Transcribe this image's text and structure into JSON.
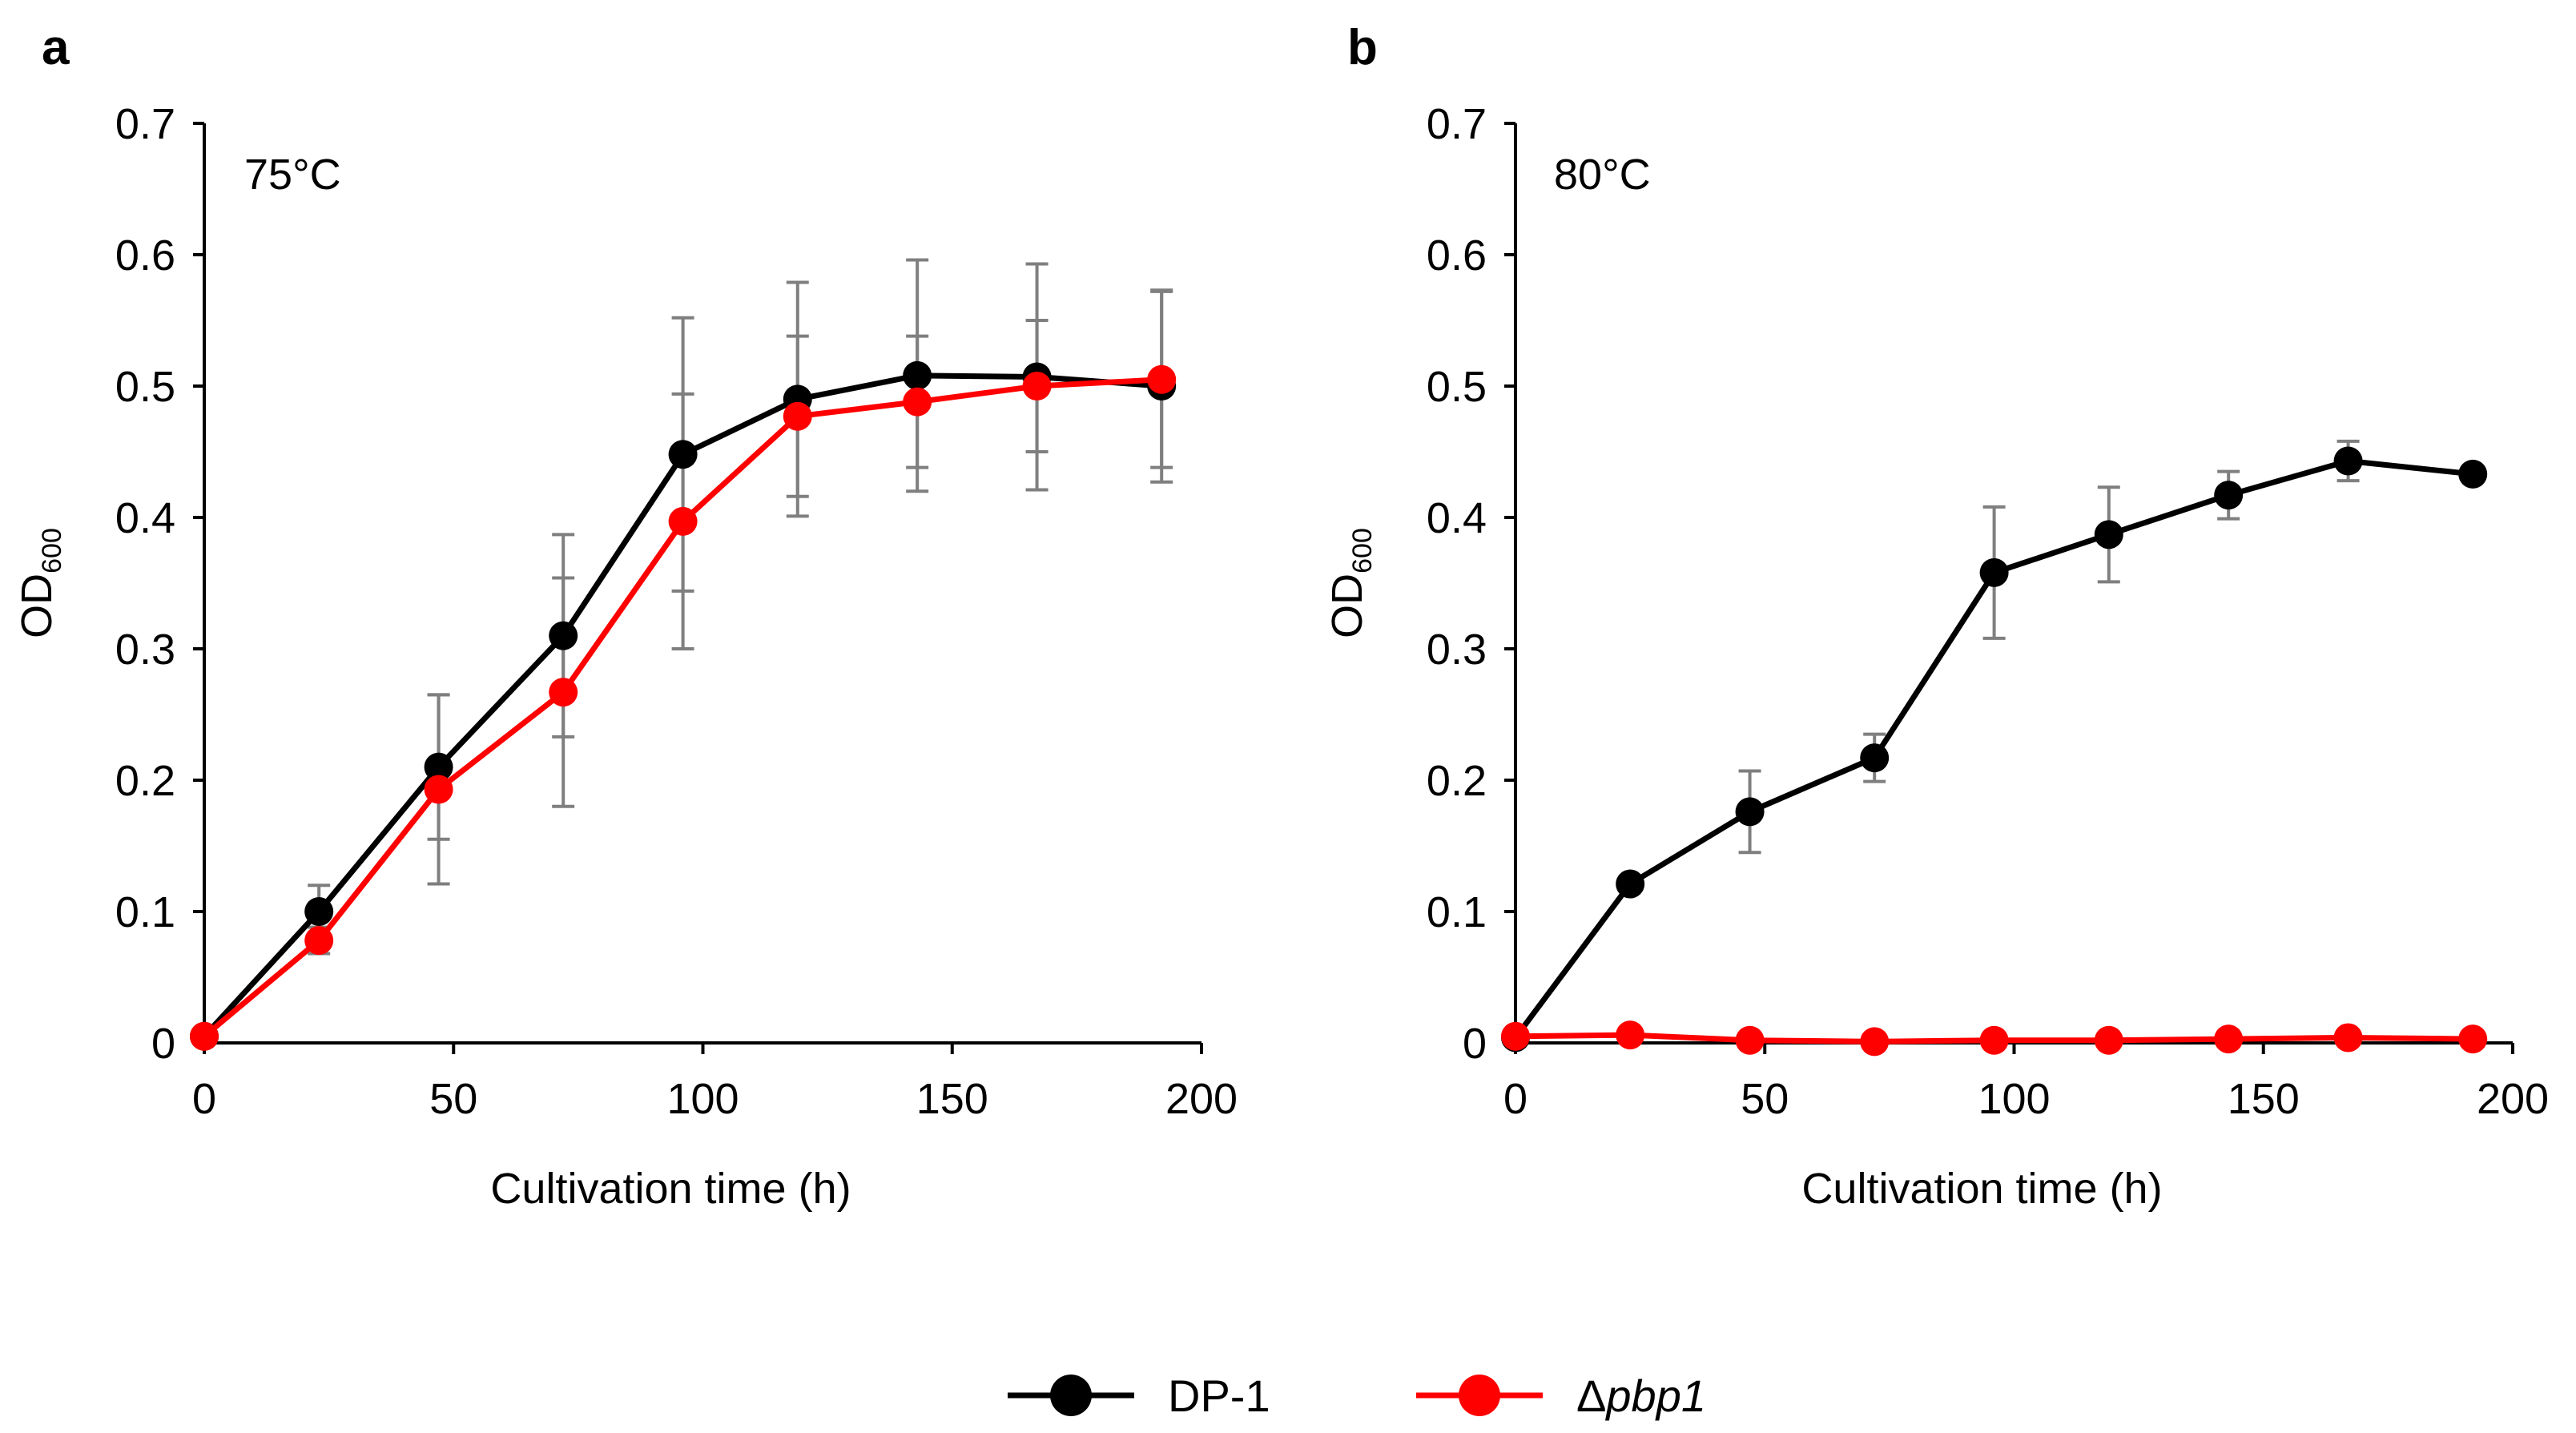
{
  "colors": {
    "dp1": "#000000",
    "pbp1": "#ff0000",
    "error_bar": "#7f7f7f",
    "axis": "#000000"
  },
  "legend": [
    {
      "label": "DP-1",
      "color": "#000000",
      "italic": false
    },
    {
      "label_prefix": "Δ",
      "label": "pbp1",
      "color": "#ff0000",
      "italic": true
    }
  ],
  "chart_data": [
    {
      "panel": "a",
      "type": "line",
      "annotation": "75°C",
      "xlabel": "Cultivation time (h)",
      "ylabel_main": "OD",
      "ylabel_sub": "600",
      "xlim": [
        0,
        200
      ],
      "ylim": [
        0,
        0.7
      ],
      "xticks": [
        "0",
        "50",
        "100",
        "150",
        "200"
      ],
      "yticks": [
        "0",
        "0.1",
        "0.2",
        "0.3",
        "0.4",
        "0.5",
        "0.6",
        "0.7"
      ],
      "x": [
        0,
        23,
        47,
        72,
        96,
        119,
        143,
        167,
        192
      ],
      "series": [
        {
          "name": "DP-1",
          "color": "#000000",
          "values": [
            0.005,
            0.1,
            0.21,
            0.31,
            0.448,
            0.49,
            0.508,
            0.507,
            0.5
          ],
          "errors": [
            0.003,
            0.02,
            0.055,
            0.077,
            0.104,
            0.089,
            0.088,
            0.086,
            0.073
          ]
        },
        {
          "name": "pbp1",
          "color": "#ff0000",
          "values": [
            0.005,
            0.078,
            0.193,
            0.267,
            0.397,
            0.477,
            0.488,
            0.5,
            0.505
          ],
          "errors": [
            0.003,
            0.01,
            0.072,
            0.087,
            0.097,
            0.061,
            0.05,
            0.05,
            0.067
          ]
        }
      ]
    },
    {
      "panel": "b",
      "type": "line",
      "annotation": "80°C",
      "xlabel": "Cultivation time (h)",
      "ylabel_main": "OD",
      "ylabel_sub": "600",
      "xlim": [
        0,
        200
      ],
      "ylim": [
        0,
        0.7
      ],
      "xticks": [
        "0",
        "50",
        "100",
        "150",
        "200"
      ],
      "yticks": [
        "0",
        "0.1",
        "0.2",
        "0.3",
        "0.4",
        "0.5",
        "0.6",
        "0.7"
      ],
      "x": [
        0,
        23,
        47,
        72,
        96,
        119,
        143,
        167,
        192
      ],
      "series": [
        {
          "name": "DP-1",
          "color": "#000000",
          "values": [
            0.004,
            0.121,
            0.176,
            0.217,
            0.358,
            0.387,
            0.417,
            0.443,
            0.433
          ],
          "errors": [
            0.002,
            0.003,
            0.031,
            0.018,
            0.05,
            0.036,
            0.018,
            0.015,
            0.004
          ]
        },
        {
          "name": "pbp1",
          "color": "#ff0000",
          "values": [
            0.005,
            0.006,
            0.002,
            0.001,
            0.002,
            0.002,
            0.003,
            0.004,
            0.003
          ],
          "errors": [
            0.001,
            0.001,
            0.001,
            0.001,
            0.001,
            0.001,
            0.001,
            0.001,
            0.001
          ]
        }
      ]
    }
  ]
}
